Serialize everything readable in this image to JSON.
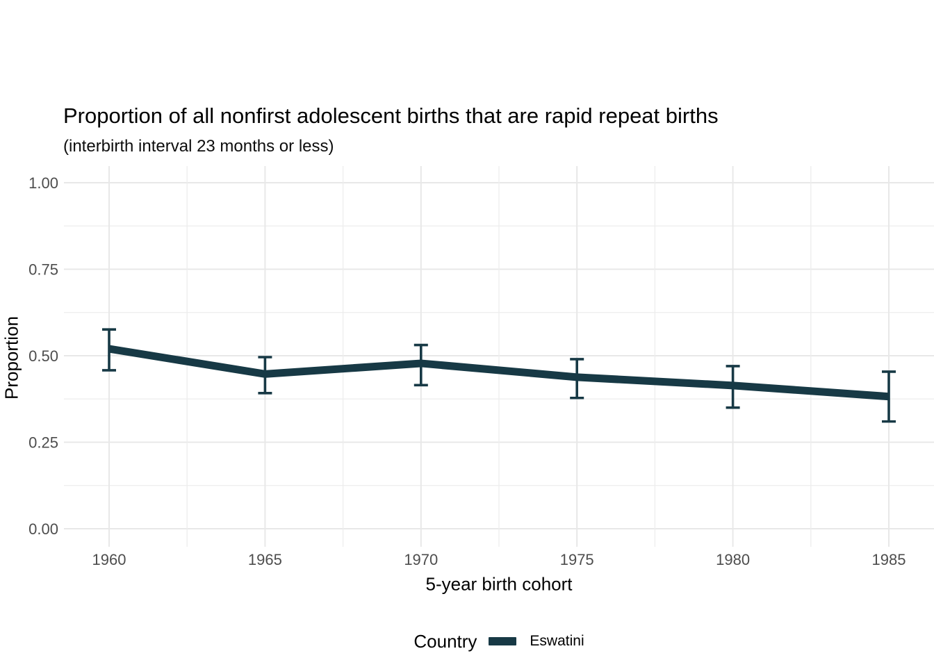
{
  "chart_data": {
    "type": "line",
    "title": "Proportion of all nonfirst adolescent births that are rapid repeat births",
    "subtitle": "(interbirth interval 23 months or less)",
    "xlabel": "5-year birth cohort",
    "ylabel": "Proportion",
    "x": [
      1960,
      1965,
      1970,
      1975,
      1980,
      1985
    ],
    "x_tick_labels": [
      "1960",
      "1965",
      "1970",
      "1975",
      "1980",
      "1985"
    ],
    "y_ticks": [
      0,
      0.25,
      0.5,
      0.75,
      1
    ],
    "y_tick_labels": [
      "0.00",
      "0.25",
      "0.50",
      "0.75",
      "1.00"
    ],
    "ylim": [
      0,
      1
    ],
    "grid": "major and minor gridlines, no axis ticks (theme_minimal style)",
    "legend": {
      "title": "Country",
      "position": "bottom",
      "entries": [
        {
          "label": "Eswatini",
          "color": "#173945"
        }
      ]
    },
    "series": [
      {
        "name": "Eswatini",
        "color": "#173945",
        "values": [
          0.52,
          0.447,
          0.478,
          0.438,
          0.414,
          0.382
        ],
        "ci_lower": [
          0.458,
          0.392,
          0.415,
          0.378,
          0.35,
          0.31
        ],
        "ci_upper": [
          0.576,
          0.496,
          0.531,
          0.49,
          0.47,
          0.454
        ]
      }
    ],
    "colors": {
      "grid_major": "#e8e8e8",
      "grid_minor": "#ededed",
      "tick_label": "#4d4d4d",
      "text": "#000000"
    }
  }
}
